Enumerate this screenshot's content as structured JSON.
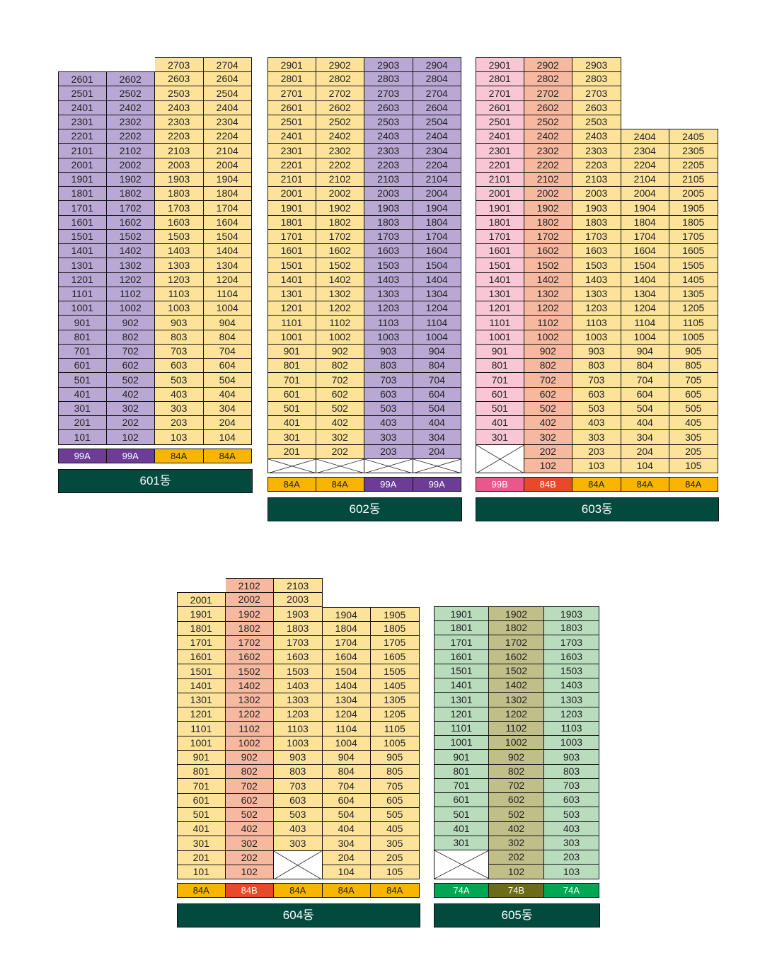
{
  "colors": {
    "purple_unit": "#b9a7d4",
    "yellow_unit": "#fde39a",
    "pink_unit": "#f9c6d6",
    "salmon_unit": "#f7b8a0",
    "green_unit": "#b9dcbd",
    "olive_unit": "#c0bf8a",
    "label_bg": "#024a3e"
  },
  "buildings": [
    {
      "id": "601",
      "label": "601동",
      "top_floor": 27,
      "columns": [
        {
          "line": "01",
          "type": "99A",
          "unit_color": "#b9a7d4",
          "tag_bg": "#6b3d97",
          "tag_fg": "#ffffff",
          "floors": [
            1,
            26
          ]
        },
        {
          "line": "02",
          "type": "99A",
          "unit_color": "#b9a7d4",
          "tag_bg": "#6b3d97",
          "tag_fg": "#ffffff",
          "floors": [
            1,
            26
          ]
        },
        {
          "line": "03",
          "type": "84A",
          "unit_color": "#fde39a",
          "tag_bg": "#f7b500",
          "tag_fg": "#222222",
          "floors": [
            1,
            27
          ]
        },
        {
          "line": "04",
          "type": "84A",
          "unit_color": "#fde39a",
          "tag_bg": "#f7b500",
          "tag_fg": "#222222",
          "floors": [
            1,
            27
          ]
        }
      ]
    },
    {
      "id": "602",
      "label": "602동",
      "top_floor": 29,
      "columns": [
        {
          "line": "01",
          "type": "84A",
          "unit_color": "#fde39a",
          "tag_bg": "#f7b500",
          "tag_fg": "#222222",
          "floors": [
            2,
            29
          ],
          "empty": [
            1
          ]
        },
        {
          "line": "02",
          "type": "84A",
          "unit_color": "#fde39a",
          "tag_bg": "#f7b500",
          "tag_fg": "#222222",
          "floors": [
            2,
            29
          ],
          "empty": [
            1
          ]
        },
        {
          "line": "03",
          "type": "99A",
          "unit_color": "#b9a7d4",
          "tag_bg": "#6b3d97",
          "tag_fg": "#ffffff",
          "floors": [
            2,
            29
          ],
          "empty": [
            1
          ]
        },
        {
          "line": "04",
          "type": "99A",
          "unit_color": "#b9a7d4",
          "tag_bg": "#6b3d97",
          "tag_fg": "#ffffff",
          "floors": [
            2,
            29
          ],
          "empty": [
            1
          ]
        }
      ]
    },
    {
      "id": "603",
      "label": "603동",
      "top_floor": 29,
      "columns": [
        {
          "line": "01",
          "type": "99B",
          "unit_color": "#f9c6d6",
          "tag_bg": "#e9588a",
          "tag_fg": "#ffffff",
          "floors": [
            3,
            29
          ],
          "empty_span": [
            1,
            2
          ]
        },
        {
          "line": "02",
          "type": "84B",
          "unit_color": "#f7b8a0",
          "tag_bg": "#e8492a",
          "tag_fg": "#ffffff",
          "floors": [
            1,
            29
          ]
        },
        {
          "line": "03",
          "type": "84A",
          "unit_color": "#fde39a",
          "tag_bg": "#f7b500",
          "tag_fg": "#222222",
          "floors": [
            1,
            29
          ]
        },
        {
          "line": "04",
          "type": "84A",
          "unit_color": "#fde39a",
          "tag_bg": "#f7b500",
          "tag_fg": "#222222",
          "floors": [
            1,
            24
          ]
        },
        {
          "line": "05",
          "type": "84A",
          "unit_color": "#fde39a",
          "tag_bg": "#f7b500",
          "tag_fg": "#222222",
          "floors": [
            1,
            24
          ]
        }
      ]
    },
    {
      "id": "604",
      "label": "604동",
      "top_floor": 21,
      "columns": [
        {
          "line": "01",
          "type": "84A",
          "unit_color": "#fde39a",
          "tag_bg": "#f7b500",
          "tag_fg": "#222222",
          "floors": [
            1,
            20
          ]
        },
        {
          "line": "02",
          "type": "84B",
          "unit_color": "#f7b8a0",
          "tag_bg": "#e8492a",
          "tag_fg": "#ffffff",
          "floors": [
            1,
            21
          ]
        },
        {
          "line": "03",
          "type": "84A",
          "unit_color": "#fde39a",
          "tag_bg": "#f7b500",
          "tag_fg": "#222222",
          "floors": [
            3,
            21
          ],
          "empty_span": [
            1,
            2
          ]
        },
        {
          "line": "04",
          "type": "84A",
          "unit_color": "#fde39a",
          "tag_bg": "#f7b500",
          "tag_fg": "#222222",
          "floors": [
            1,
            19
          ]
        },
        {
          "line": "05",
          "type": "84A",
          "unit_color": "#fde39a",
          "tag_bg": "#f7b500",
          "tag_fg": "#222222",
          "floors": [
            1,
            19
          ]
        }
      ]
    },
    {
      "id": "605",
      "label": "605동",
      "top_floor": 19,
      "columns": [
        {
          "line": "01",
          "type": "74A",
          "unit_color": "#b9dcbd",
          "tag_bg": "#00a651",
          "tag_fg": "#ffffff",
          "floors": [
            3,
            19
          ],
          "empty_span": [
            1,
            2
          ]
        },
        {
          "line": "02",
          "type": "74B",
          "unit_color": "#c0bf8a",
          "tag_bg": "#6b6b1a",
          "tag_fg": "#ffffff",
          "floors": [
            1,
            19
          ]
        },
        {
          "line": "03",
          "type": "74A",
          "unit_color": "#b9dcbd",
          "tag_bg": "#00a651",
          "tag_fg": "#ffffff",
          "floors": [
            1,
            19
          ]
        }
      ]
    }
  ]
}
